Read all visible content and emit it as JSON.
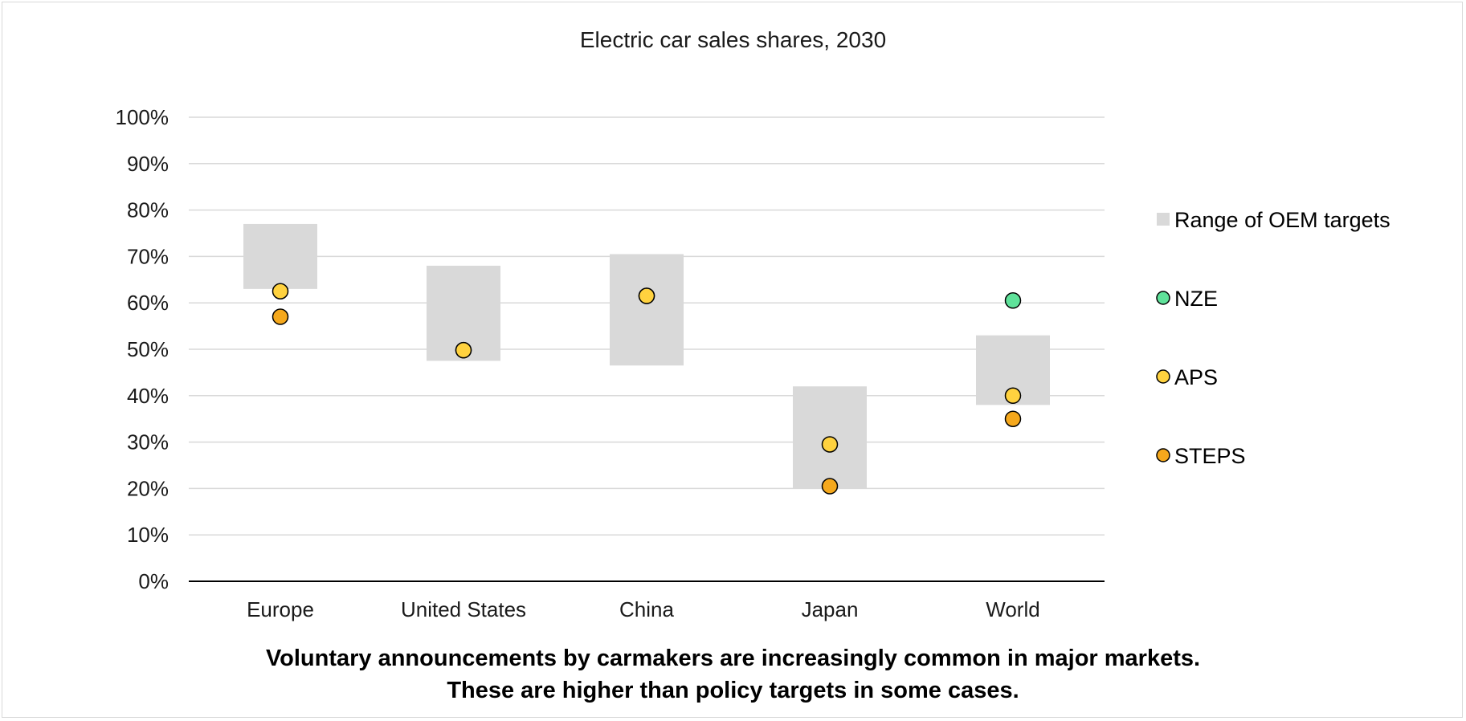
{
  "chart_data": {
    "type": "scatter",
    "title": "Electric car sales shares, 2030",
    "categories": [
      "Europe",
      "United States",
      "China",
      "Japan",
      "World"
    ],
    "y_ticks": [
      "0%",
      "10%",
      "20%",
      "30%",
      "40%",
      "50%",
      "60%",
      "70%",
      "80%",
      "90%",
      "100%"
    ],
    "ylim": [
      0,
      100
    ],
    "grid": true,
    "legend_position": "right",
    "series": [
      {
        "name": "Range of OEM targets",
        "kind": "range",
        "color": "#d9d9d9",
        "ranges": [
          [
            63,
            77
          ],
          [
            47.5,
            68
          ],
          [
            46.5,
            70.5
          ],
          [
            20,
            42
          ],
          [
            38,
            53
          ]
        ]
      },
      {
        "name": "NZE",
        "kind": "point",
        "color": "#5fe29a",
        "values": [
          null,
          null,
          null,
          null,
          60.5
        ]
      },
      {
        "name": "APS",
        "kind": "point",
        "color": "#ffd23f",
        "values": [
          62.5,
          49.8,
          61.5,
          29.5,
          40
        ]
      },
      {
        "name": "STEPS",
        "kind": "point",
        "color": "#f5a81c",
        "values": [
          57,
          49.8,
          61.5,
          20.5,
          35
        ]
      }
    ]
  },
  "caption": {
    "line1": "Voluntary announcements by carmakers are increasingly common in major markets.",
    "line2": "These are higher than policy targets in some cases."
  }
}
